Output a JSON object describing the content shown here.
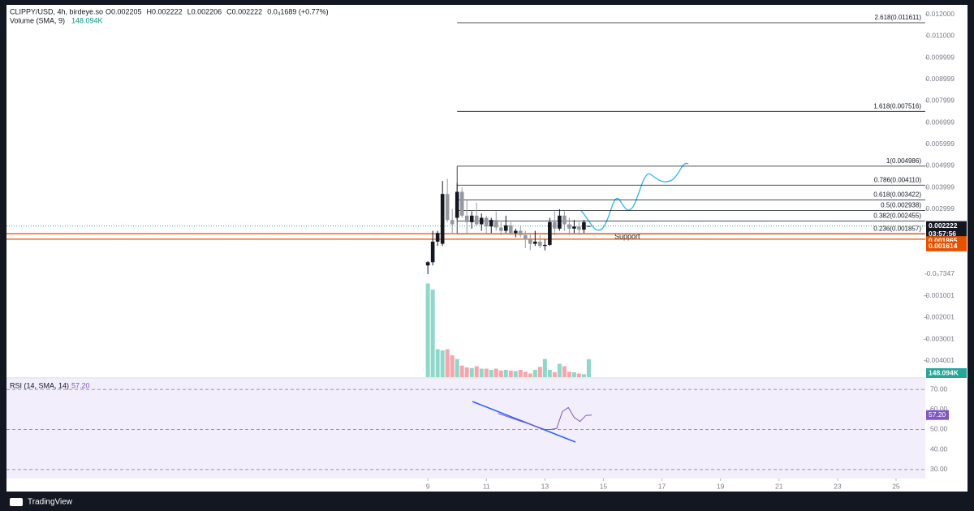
{
  "chart_data": {
    "type": "candlestick",
    "title": "CLIPPY/USD, 4h, birdeye.so",
    "legend_values": [
      "O0.002205",
      "H0.002222",
      "L0.002206",
      "C0.002222",
      "0.0₄1689 (+0.77%)"
    ],
    "x": [
      9.0,
      9.1667,
      9.3333,
      9.5,
      9.6667,
      9.8333,
      10.0,
      10.1667,
      10.3333,
      10.5,
      10.6667,
      10.8333,
      11.0,
      11.1667,
      11.3333,
      11.5,
      11.6667,
      11.8333,
      12.0,
      12.1667,
      12.3333,
      12.5,
      12.6667,
      12.8333,
      13.0,
      13.1667,
      13.3333,
      13.5,
      13.6667,
      13.8333,
      14.0,
      14.1667,
      14.3333,
      14.5
    ],
    "open": [
      0.0004,
      0.00055,
      0.0015,
      0.0014,
      0.0037,
      0.0025,
      0.0026,
      0.0038,
      0.0027,
      0.0024,
      0.0027,
      0.0023,
      0.0026,
      0.0022,
      0.0025,
      0.00215,
      0.002,
      0.00225,
      0.0019,
      0.002,
      0.0018,
      0.0016,
      0.0014,
      0.0015,
      0.0013,
      0.00135,
      0.0024,
      0.0021,
      0.0027,
      0.0023,
      0.0021,
      0.0022,
      0.00205,
      0.002205
    ],
    "high": [
      0.0006,
      0.002,
      0.002,
      0.0043,
      0.0044,
      0.003,
      0.0042,
      0.004,
      0.0034,
      0.0029,
      0.0033,
      0.0028,
      0.0027,
      0.0026,
      0.0029,
      0.0024,
      0.0027,
      0.0024,
      0.0021,
      0.0022,
      0.002,
      0.0019,
      0.002,
      0.0018,
      0.0016,
      0.0026,
      0.0029,
      0.003,
      0.0029,
      0.0026,
      0.0025,
      0.0024,
      0.0025,
      0.002222
    ],
    "low": [
      0.0,
      0.0004,
      0.0013,
      0.0013,
      0.0024,
      0.0019,
      0.0025,
      0.0026,
      0.0019,
      0.0021,
      0.0022,
      0.002,
      0.0019,
      0.0019,
      0.002,
      0.0018,
      0.0019,
      0.0018,
      0.0017,
      0.0017,
      0.0012,
      0.0011,
      0.0013,
      0.0012,
      0.0011,
      0.0013,
      0.0018,
      0.002,
      0.002,
      0.0018,
      0.0019,
      0.0018,
      0.0019,
      0.002206
    ],
    "close": [
      0.00055,
      0.0015,
      0.0019,
      0.0037,
      0.0025,
      0.0023,
      0.0038,
      0.0027,
      0.0024,
      0.0027,
      0.0023,
      0.0026,
      0.0022,
      0.0025,
      0.00215,
      0.002,
      0.00225,
      0.0019,
      0.002,
      0.0018,
      0.0016,
      0.0014,
      0.0015,
      0.0013,
      0.00135,
      0.0024,
      0.0021,
      0.0027,
      0.0023,
      0.0021,
      0.0022,
      0.00205,
      0.0024,
      0.002222
    ],
    "up_color": "#131722",
    "down_color": "#9598a1",
    "xlim": [
      -5.4,
      26.0
    ],
    "xticks": [
      9,
      11,
      13,
      15,
      17,
      19,
      21,
      23,
      25
    ],
    "ylim": [
      -0.00476,
      0.01236
    ],
    "yticks": [
      {
        "value": 0.012,
        "label": "0.012000"
      },
      {
        "value": 0.011,
        "label": "0.011000"
      },
      {
        "value": 0.009999,
        "label": "0.009999"
      },
      {
        "value": 0.008999,
        "label": "0.008999"
      },
      {
        "value": 0.007999,
        "label": "0.007999"
      },
      {
        "value": 0.006999,
        "label": "0.006999"
      },
      {
        "value": 0.005999,
        "label": "0.005999"
      },
      {
        "value": 0.004999,
        "label": "0.004999"
      },
      {
        "value": 0.003999,
        "label": "0.003999"
      },
      {
        "value": 0.002999,
        "label": "0.002999"
      },
      {
        "value": -7.347e-07,
        "label": "-0.0₀7347"
      },
      {
        "value": -0.001001,
        "label": "-0.001001"
      },
      {
        "value": -0.002001,
        "label": "-0.002001"
      },
      {
        "value": -0.003001,
        "label": "-0.003001"
      },
      {
        "value": -0.004001,
        "label": "-0.004001"
      }
    ],
    "fib_levels": {
      "values": [
        0.011611,
        0.007516,
        0.004986,
        0.00411,
        0.003422,
        0.002938,
        0.002455,
        0.001857
      ],
      "value_labels": [
        "2.618(0.011611)",
        "1.618(0.007516)",
        "1(0.004986)",
        "0.786(0.004110)",
        "0.618(0.003422)",
        "0.5(0.002938)",
        "0.382(0.002455)",
        "0.236(0.001857)"
      ]
    },
    "levels": {
      "values": [
        0.001865,
        0.001614
      ],
      "value_labels": [
        "0.001865",
        "0.001614"
      ],
      "color": "#e65100"
    },
    "last_price": {
      "value": 0.002222,
      "label": "0.002222",
      "countdown": "03:57:56"
    },
    "annotation": "Support",
    "volume": {
      "title": "Volume (SMA, 9)",
      "value_label": "148.094K",
      "ylim": [
        0,
        1000
      ],
      "up_color": "#8fd8c9",
      "down_color": "#f5a6ad",
      "values": [
        770,
        720,
        230,
        220,
        230,
        180,
        150,
        95,
        80,
        75,
        90,
        70,
        70,
        60,
        70,
        55,
        60,
        55,
        50,
        60,
        45,
        30,
        60,
        85,
        150,
        60,
        40,
        110,
        90,
        45,
        40,
        30,
        25,
        148.094
      ]
    },
    "rsi": {
      "title": "RSI (14, SMA, 14)",
      "value_label": "57.20",
      "color": "#7e57c2",
      "x": [
        11.4,
        11.6,
        11.8,
        12.0,
        12.2,
        12.4,
        12.6,
        12.8,
        13.0,
        13.2,
        13.4,
        13.6,
        13.8,
        14.0,
        14.2,
        14.4,
        14.6
      ],
      "values": [
        58,
        57,
        56,
        55,
        54,
        53,
        52,
        51,
        50,
        50,
        50.5,
        59,
        61,
        56,
        54,
        57,
        57.2
      ],
      "ylim": [
        25.5,
        75.3
      ],
      "yticks": [
        {
          "value": 70,
          "label": "70.00"
        },
        {
          "value": 60,
          "label": "60.00"
        },
        {
          "value": 50,
          "label": "50.00"
        },
        {
          "value": 40,
          "label": "40.00"
        },
        {
          "value": 30,
          "label": "30.00"
        }
      ]
    },
    "footer": "TradingView"
  }
}
